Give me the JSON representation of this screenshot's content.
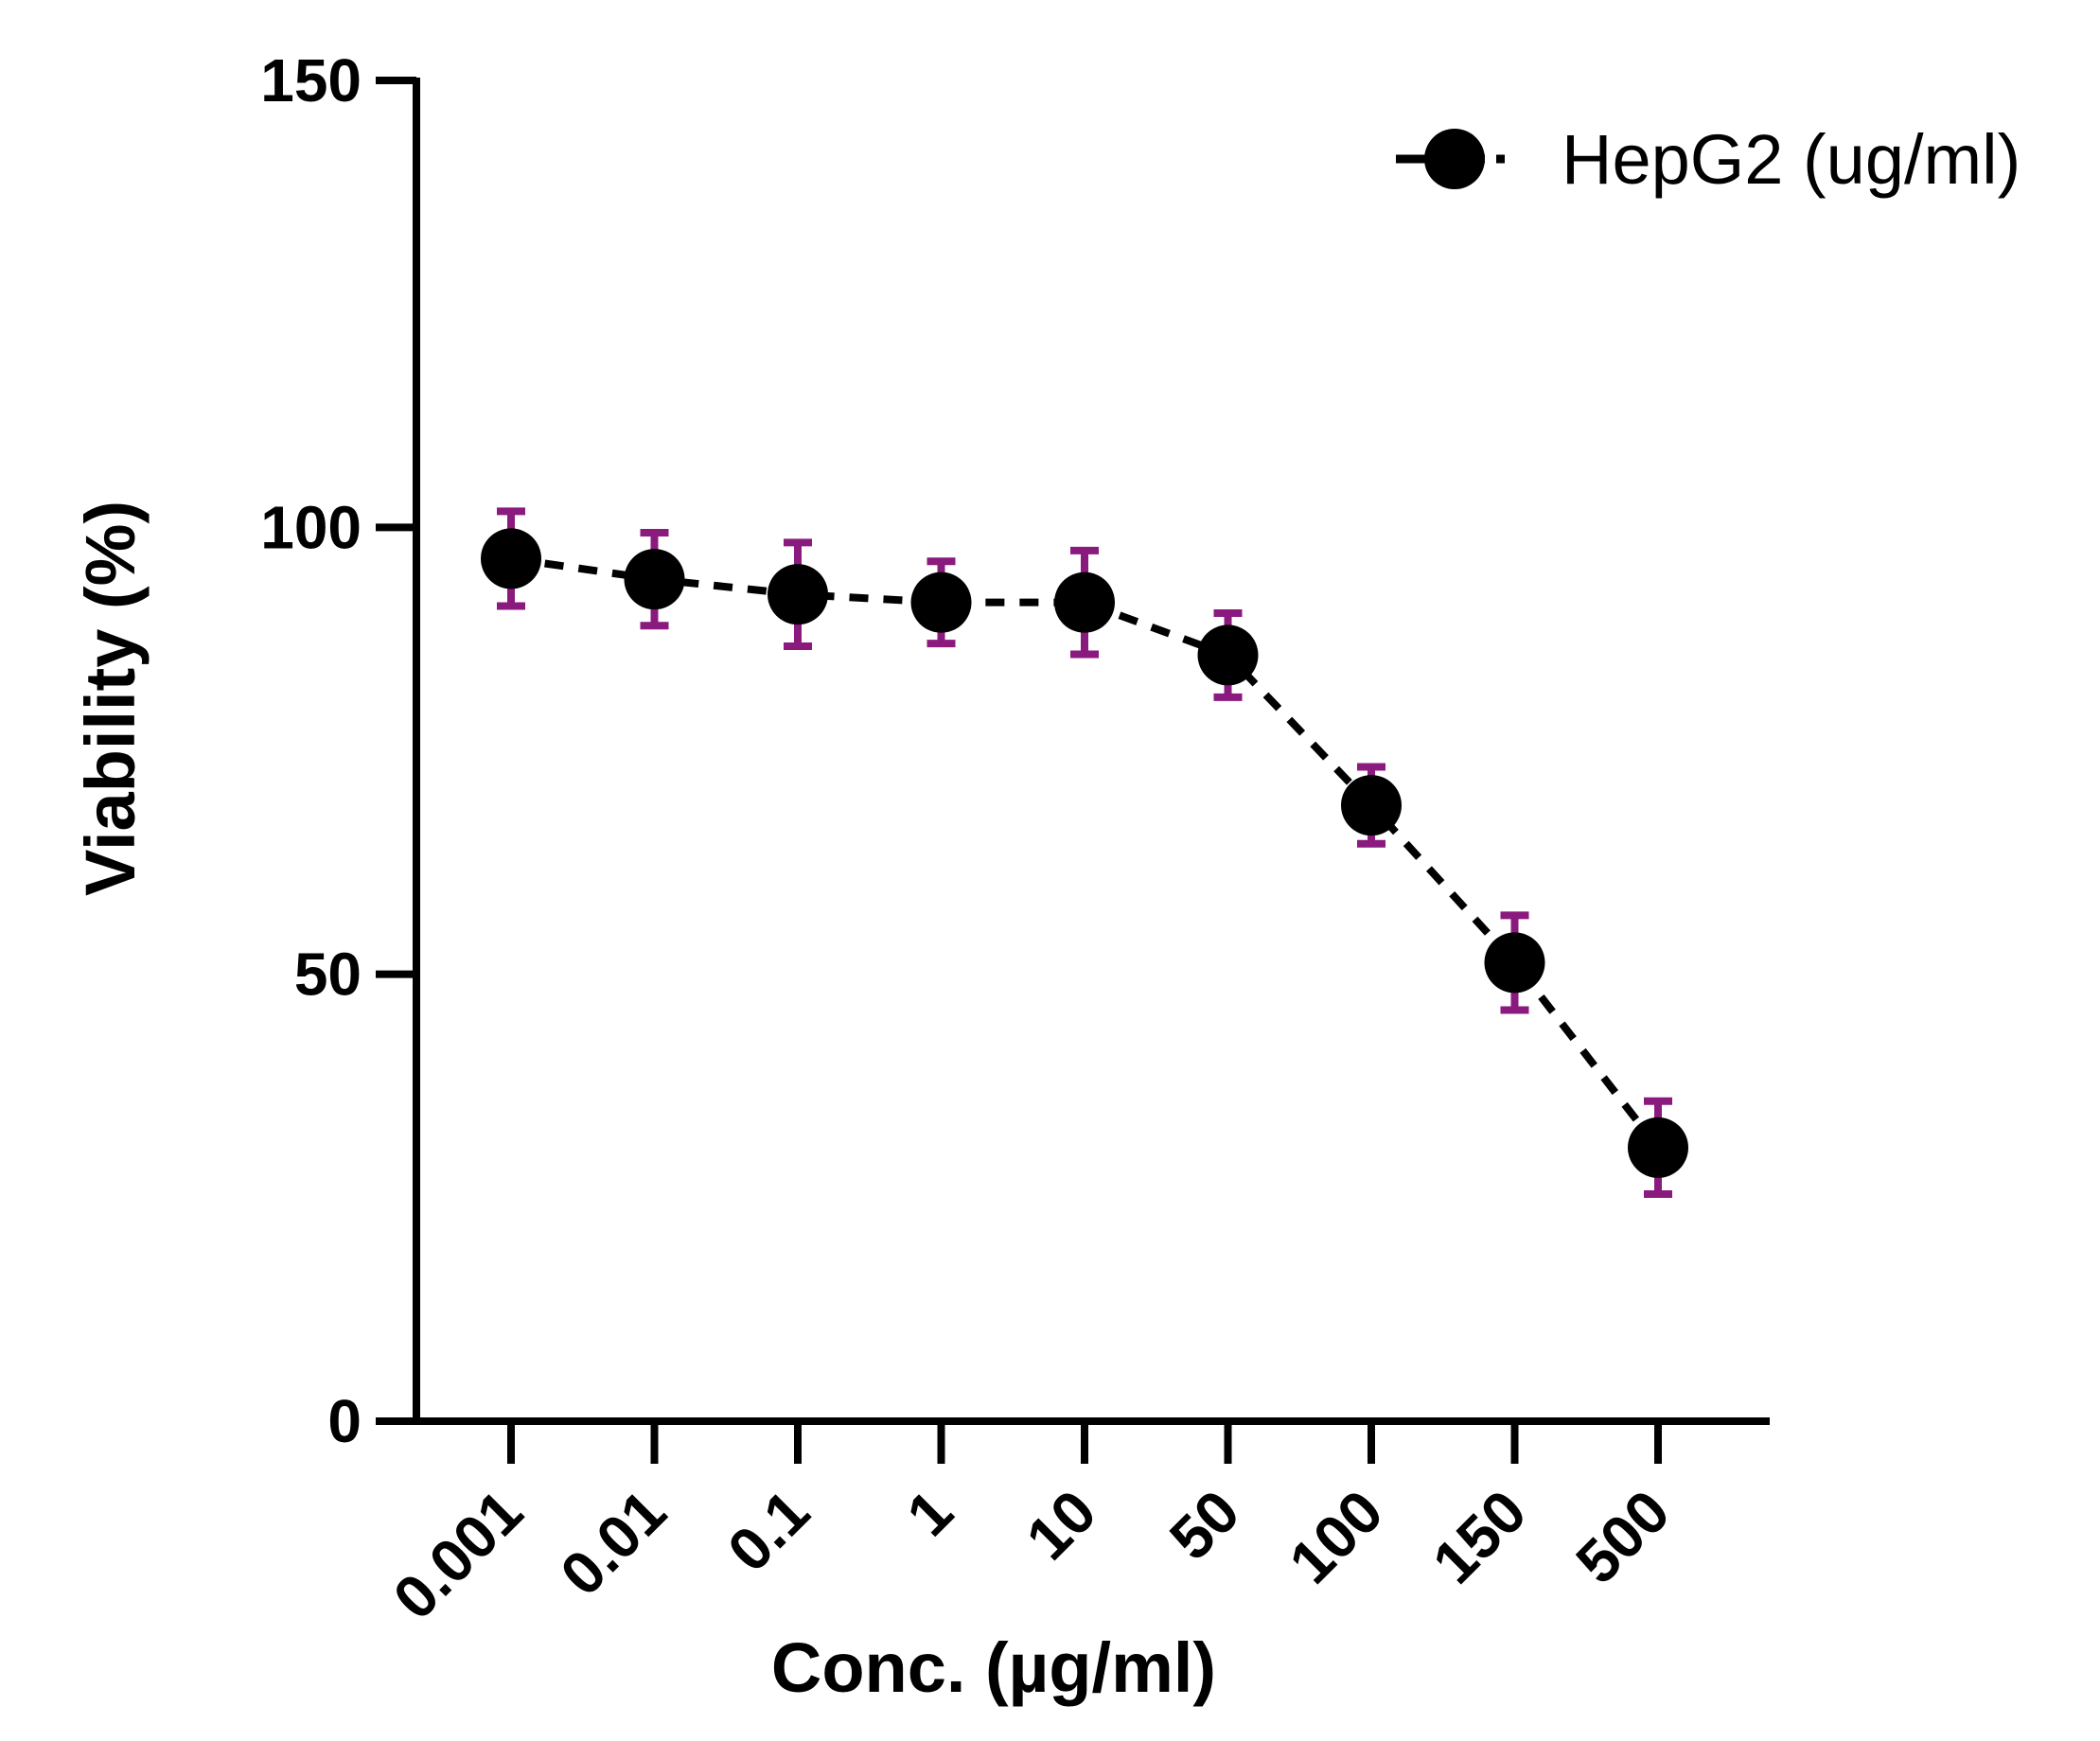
{
  "chart_data": {
    "type": "line",
    "title": "",
    "xlabel": "Conc. (µg/ml)",
    "ylabel": "Viability (%)",
    "ylim": [
      0,
      150
    ],
    "yticks": [
      "0",
      "50",
      "100",
      "150"
    ],
    "categories": [
      "0.001",
      "0.01",
      "0.1",
      "1",
      "10",
      "50",
      "100",
      "150",
      "500"
    ],
    "series": [
      {
        "name": "HepG2 (ug/ml)",
        "values": [
          96.5,
          94.2,
          92.5,
          91.6,
          91.6,
          85.7,
          68.9,
          51.3,
          30.6
        ],
        "errors": [
          5.3,
          5.2,
          5.8,
          4.6,
          5.8,
          4.7,
          4.3,
          5.3,
          5.2
        ],
        "color": "#000000",
        "error_color": "#8b1a7e"
      }
    ],
    "legend": "top-right"
  }
}
